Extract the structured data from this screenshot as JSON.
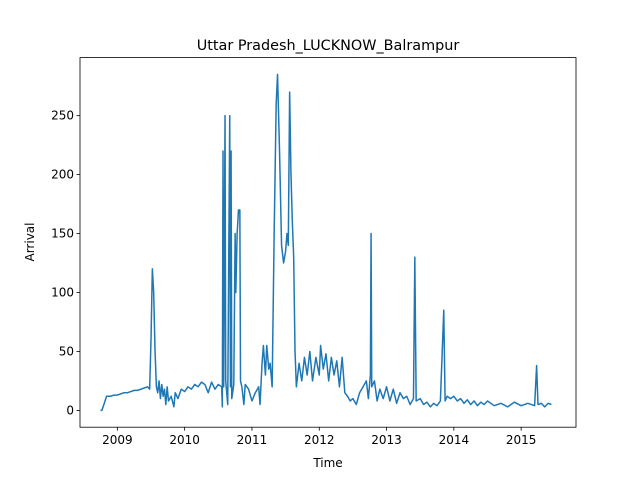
{
  "chart_data": {
    "type": "line",
    "title": "Uttar Pradesh_LUCKNOW_Balrampur",
    "x_label": "Time",
    "y_label": "Arrival",
    "x": [
      2008.75,
      2008.77,
      2008.8,
      2008.84,
      2008.9,
      2008.95,
      2009.0,
      2009.05,
      2009.1,
      2009.15,
      2009.2,
      2009.25,
      2009.3,
      2009.35,
      2009.4,
      2009.45,
      2009.48,
      2009.5,
      2009.52,
      2009.54,
      2009.56,
      2009.58,
      2009.6,
      2009.62,
      2009.64,
      2009.66,
      2009.68,
      2009.7,
      2009.72,
      2009.74,
      2009.76,
      2009.8,
      2009.84,
      2009.86,
      2009.9,
      2009.95,
      2010.0,
      2010.05,
      2010.1,
      2010.15,
      2010.2,
      2010.25,
      2010.3,
      2010.35,
      2010.4,
      2010.45,
      2010.5,
      2010.55,
      2010.56,
      2010.57,
      2010.58,
      2010.6,
      2010.61,
      2010.64,
      2010.67,
      2010.68,
      2010.69,
      2010.7,
      2010.73,
      2010.75,
      2010.76,
      2010.78,
      2010.8,
      2010.82,
      2010.83,
      2010.85,
      2010.88,
      2010.9,
      2010.95,
      2011.0,
      2011.05,
      2011.1,
      2011.12,
      2011.15,
      2011.17,
      2011.2,
      2011.22,
      2011.25,
      2011.27,
      2011.3,
      2011.33,
      2011.36,
      2011.38,
      2011.41,
      2011.44,
      2011.47,
      2011.5,
      2011.52,
      2011.54,
      2011.56,
      2011.58,
      2011.6,
      2011.62,
      2011.64,
      2011.66,
      2011.7,
      2011.74,
      2011.78,
      2011.82,
      2011.86,
      2011.9,
      2011.95,
      2012.0,
      2012.02,
      2012.06,
      2012.1,
      2012.14,
      2012.18,
      2012.22,
      2012.26,
      2012.3,
      2012.34,
      2012.38,
      2012.42,
      2012.46,
      2012.5,
      2012.55,
      2012.6,
      2012.65,
      2012.7,
      2012.73,
      2012.76,
      2012.77,
      2012.78,
      2012.82,
      2012.86,
      2012.9,
      2012.95,
      2013.0,
      2013.05,
      2013.1,
      2013.15,
      2013.2,
      2013.25,
      2013.3,
      2013.35,
      2013.4,
      2013.42,
      2013.44,
      2013.5,
      2013.55,
      2013.6,
      2013.65,
      2013.7,
      2013.75,
      2013.8,
      2013.85,
      2013.87,
      2013.9,
      2013.95,
      2014.0,
      2014.05,
      2014.1,
      2014.15,
      2014.2,
      2014.25,
      2014.3,
      2014.35,
      2014.4,
      2014.45,
      2014.5,
      2014.6,
      2014.7,
      2014.8,
      2014.9,
      2015.0,
      2015.1,
      2015.2,
      2015.23,
      2015.25,
      2015.3,
      2015.35,
      2015.4,
      2015.45
    ],
    "values": [
      0,
      0,
      5,
      12,
      12,
      13,
      13,
      14,
      15,
      15,
      16,
      17,
      17,
      18,
      19,
      20,
      18,
      60,
      120,
      100,
      50,
      20,
      15,
      25,
      10,
      22,
      12,
      18,
      5,
      20,
      8,
      12,
      3,
      15,
      10,
      18,
      16,
      20,
      18,
      22,
      20,
      24,
      22,
      15,
      24,
      18,
      22,
      20,
      3,
      220,
      20,
      250,
      25,
      5,
      250,
      20,
      220,
      10,
      22,
      150,
      100,
      150,
      170,
      170,
      25,
      20,
      5,
      22,
      18,
      8,
      15,
      20,
      5,
      40,
      55,
      30,
      55,
      35,
      40,
      20,
      150,
      260,
      285,
      220,
      140,
      125,
      135,
      150,
      140,
      270,
      200,
      160,
      130,
      50,
      20,
      40,
      25,
      45,
      30,
      50,
      25,
      45,
      30,
      55,
      35,
      48,
      25,
      45,
      30,
      42,
      20,
      45,
      15,
      12,
      8,
      10,
      5,
      15,
      20,
      25,
      10,
      30,
      150,
      20,
      25,
      8,
      18,
      10,
      20,
      8,
      18,
      6,
      15,
      10,
      12,
      5,
      10,
      130,
      8,
      10,
      5,
      7,
      3,
      6,
      4,
      8,
      85,
      8,
      12,
      10,
      12,
      8,
      10,
      6,
      9,
      5,
      8,
      4,
      7,
      5,
      8,
      4,
      6,
      3,
      7,
      4,
      6,
      4,
      38,
      5,
      6,
      3,
      6,
      5
    ],
    "color": "#1f77b4",
    "xlim": [
      2008.445,
      2015.815
    ],
    "xticks": [
      2009,
      2010,
      2011,
      2012,
      2013,
      2014,
      2015
    ],
    "ylim": [
      -14.25,
      299.25
    ],
    "yticks": [
      0,
      50,
      100,
      150,
      200,
      250
    ]
  }
}
